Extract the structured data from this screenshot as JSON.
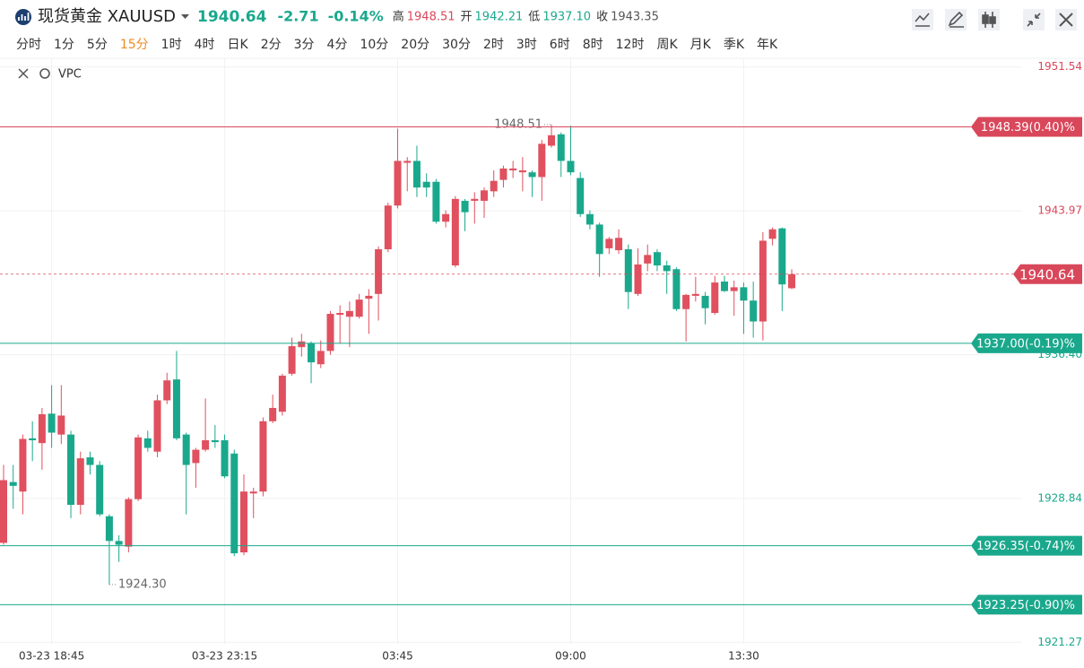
{
  "header": {
    "symbol": "现货黄金 XAUUSD",
    "price": "1940.64",
    "change": "-2.71",
    "change_pct": "-0.14%",
    "price_color": "#1aa88c",
    "stats": [
      {
        "label": "高",
        "value": "1948.51",
        "color": "#d9475b"
      },
      {
        "label": "开",
        "value": "1942.21",
        "color": "#1aa88c"
      },
      {
        "label": "低",
        "value": "1937.10",
        "color": "#1aa88c"
      },
      {
        "label": "收",
        "value": "1943.35",
        "color": "#555555"
      }
    ]
  },
  "timeframes": [
    "分时",
    "1分",
    "5分",
    "15分",
    "1时",
    "4时",
    "日K",
    "2分",
    "3分",
    "4分",
    "10分",
    "20分",
    "30分",
    "2时",
    "3时",
    "6时",
    "8时",
    "12时",
    "周K",
    "月K",
    "季K",
    "年K"
  ],
  "selected_timeframe": "15分",
  "indicator": "VPC",
  "chart_data": {
    "type": "candlestick",
    "categories": [
      null,
      null,
      null,
      null,
      null,
      "03-23 18:45",
      null,
      null,
      null,
      null,
      null,
      null,
      null,
      null,
      null,
      null,
      null,
      null,
      null,
      null,
      null,
      null,
      null,
      "03-23 23:15",
      null,
      null,
      null,
      null,
      null,
      null,
      null,
      null,
      null,
      null,
      null,
      null,
      null,
      null,
      null,
      null,
      null,
      "03:45",
      null,
      null,
      null,
      null,
      null,
      null,
      null,
      null,
      null,
      null,
      null,
      null,
      null,
      null,
      null,
      null,
      null,
      "09:00",
      null,
      null,
      null,
      null,
      null,
      null,
      null,
      null,
      null,
      null,
      null,
      null,
      null,
      null,
      null,
      null,
      null,
      "13:30",
      null,
      null,
      null,
      null,
      null
    ],
    "open": [
      1926.5,
      1929.7,
      1929.2,
      1932.0,
      1931.75,
      1933.3,
      1932.2,
      1932.2,
      1928.5,
      1931.0,
      1930.6,
      1927.9,
      1926.6,
      1926.3,
      1928.8,
      1932.0,
      1931.3,
      1934.0,
      1935.1,
      1932.2,
      1930.7,
      1931.4,
      1931.9,
      1931.9,
      1931.2,
      1926.0,
      1929.1,
      1929.2,
      1932.9,
      1933.4,
      1935.4,
      1936.8,
      1937.0,
      1935.9,
      1936.6,
      1938.5,
      1938.4,
      1938.4,
      1939.35,
      1939.6,
      1941.95,
      1944.25,
      1946.5,
      1946.6,
      1945.5,
      1945.5,
      1943.4,
      1941.1,
      1944.5,
      1944.5,
      1944.5,
      1945.0,
      1945.6,
      1946.1,
      1946.0,
      1946.0,
      1945.75,
      1947.4,
      1948.0,
      1946.6,
      1945.7,
      1943.8,
      1943.25,
      1942.0,
      1941.9,
      1941.95,
      1939.6,
      1941.2,
      1941.8,
      1941.1,
      1940.9,
      1938.8,
      1939.5,
      1939.5,
      1938.6,
      1940.25,
      1939.75,
      1939.95,
      1939.25,
      1938.15,
      1942.5,
      1943.05,
      1939.9
    ],
    "high": [
      1930.6,
      1930.6,
      1932.2,
      1932.9,
      1933.6,
      1934.8,
      1934.8,
      1932.4,
      1931.3,
      1931.3,
      1930.8,
      1928.0,
      1926.9,
      1928.9,
      1932.2,
      1932.4,
      1934.3,
      1935.45,
      1936.6,
      1932.3,
      1931.5,
      1934.1,
      1932.7,
      1932.2,
      1931.4,
      1930.1,
      1929.4,
      1933.1,
      1934.3,
      1935.4,
      1937.3,
      1937.5,
      1937.1,
      1937.15,
      1938.7,
      1939.0,
      1939.2,
      1939.6,
      1939.85,
      1942.1,
      1944.4,
      1948.3,
      1946.8,
      1947.4,
      1945.95,
      1945.65,
      1944.0,
      1944.75,
      1944.6,
      1944.95,
      1945.2,
      1946.1,
      1946.35,
      1946.6,
      1946.8,
      1946.1,
      1947.7,
      1948.51,
      1948.1,
      1948.45,
      1946.0,
      1944.0,
      1943.35,
      1942.6,
      1943.0,
      1942.2,
      1942.0,
      1942.2,
      1941.95,
      1941.35,
      1941.0,
      1939.6,
      1940.5,
      1939.7,
      1940.55,
      1940.55,
      1940.3,
      1940.2,
      1940.25,
      1942.85,
      1943.1,
      1943.1,
      1940.9
    ],
    "low": [
      1926.4,
      1928.3,
      1928.0,
      1930.8,
      1930.35,
      1931.5,
      1931.7,
      1927.8,
      1928.0,
      1930.1,
      1927.9,
      1924.3,
      1925.5,
      1926.0,
      1928.7,
      1931.3,
      1931.0,
      1933.8,
      1931.9,
      1928.0,
      1929.4,
      1931.3,
      1931.5,
      1929.9,
      1925.8,
      1925.85,
      1927.8,
      1928.95,
      1932.8,
      1933.2,
      1935.3,
      1936.3,
      1934.9,
      1935.7,
      1936.4,
      1937.0,
      1936.8,
      1938.3,
      1937.5,
      1938.2,
      1941.8,
      1944.1,
      1945.0,
      1944.7,
      1944.7,
      1943.3,
      1943.1,
      1941.0,
      1942.9,
      1943.3,
      1943.6,
      1944.7,
      1945.2,
      1945.7,
      1945.0,
      1944.7,
      1944.5,
      1947.3,
      1945.75,
      1945.85,
      1943.65,
      1943.0,
      1940.5,
      1941.7,
      1941.7,
      1938.8,
      1939.5,
      1940.8,
      1940.8,
      1939.6,
      1938.7,
      1937.1,
      1939.2,
      1938.0,
      1938.5,
      1939.7,
      1938.45,
      1937.5,
      1937.3,
      1937.15,
      1942.15,
      1938.7,
      1939.85
    ],
    "close": [
      1929.8,
      1929.5,
      1931.97,
      1931.9,
      1933.27,
      1932.3,
      1933.2,
      1928.5,
      1930.95,
      1930.6,
      1928.0,
      1926.6,
      1926.4,
      1928.8,
      1932.05,
      1931.5,
      1934.0,
      1935.05,
      1932.0,
      1930.6,
      1931.4,
      1931.9,
      1931.8,
      1930.0,
      1925.95,
      1929.2,
      1929.2,
      1932.9,
      1933.6,
      1935.3,
      1936.85,
      1937.1,
      1936.0,
      1936.6,
      1938.55,
      1938.6,
      1938.7,
      1939.3,
      1939.5,
      1941.95,
      1944.25,
      1946.6,
      1946.6,
      1945.2,
      1945.2,
      1943.4,
      1943.8,
      1944.6,
      1943.9,
      1944.6,
      1945.05,
      1945.55,
      1946.2,
      1946.2,
      1946.1,
      1945.75,
      1947.5,
      1947.95,
      1946.6,
      1946.0,
      1943.8,
      1943.25,
      1941.7,
      1942.5,
      1942.55,
      1939.7,
      1941.15,
      1941.65,
      1941.1,
      1940.8,
      1938.8,
      1939.55,
      1939.6,
      1938.85,
      1940.2,
      1939.75,
      1939.95,
      1939.25,
      1938.15,
      1942.4,
      1943.0,
      1940.1,
      1940.64
    ],
    "up_color": "#e0505e",
    "down_color": "#1aa88c",
    "ylim": [
      1921,
      1952
    ],
    "yticks": [
      1951.54,
      1943.97,
      {
        "value": 1936.4,
        "label": "1936.40"
      },
      1928.84,
      1921.27
    ],
    "grid": true,
    "current_price": 1940.64,
    "current_color": "#d9475b",
    "levels": [
      {
        "value": 1948.39,
        "label": "1948.39(0.40)%",
        "color": "#d9475b"
      },
      {
        "value": 1937.0,
        "label": "1937.00(-0.19)%",
        "color": "#1aa88c"
      },
      {
        "value": 1926.35,
        "label": "1926.35(-0.74)%",
        "color": "#1aa88c"
      },
      {
        "value": 1923.25,
        "label": "1923.25(-0.90)%",
        "color": "#1aa88c"
      }
    ],
    "annotations": {
      "high": "1948.51",
      "low": "1924.30"
    }
  }
}
